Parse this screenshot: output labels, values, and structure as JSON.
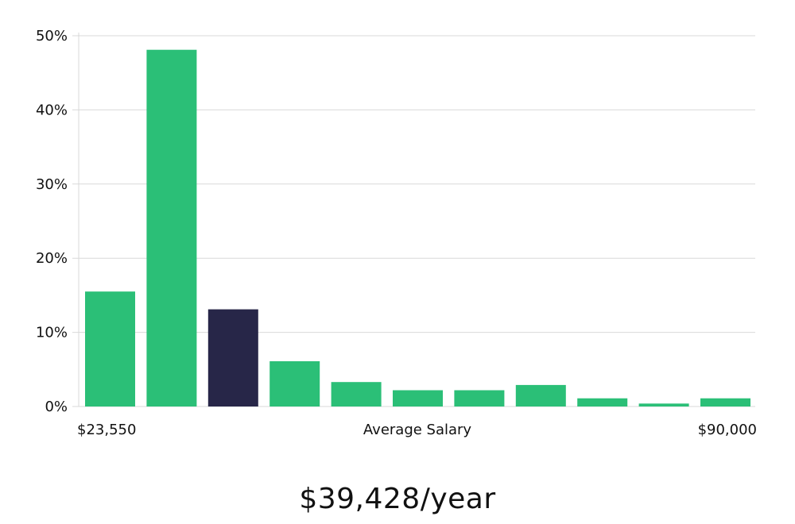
{
  "chart_data": {
    "type": "bar",
    "ylim": [
      0,
      50
    ],
    "y_ticks": [
      0,
      10,
      20,
      30,
      40,
      50
    ],
    "y_tick_labels": [
      "0%",
      "10%",
      "20%",
      "30%",
      "40%",
      "50%"
    ],
    "values": [
      15.5,
      48.1,
      13.1,
      6.1,
      3.3,
      2.2,
      2.2,
      2.9,
      1.1,
      0.4,
      1.1
    ],
    "highlight_index": 2,
    "x_min_label": "$23,550",
    "x_max_label": "$90,000",
    "xlabel": "Average Salary",
    "grid": true
  },
  "colors": {
    "bar": "#2bbf77",
    "highlight": "#272648",
    "grid": "#d9d9d9"
  },
  "summary": {
    "average_salary": "$39,428/year"
  }
}
